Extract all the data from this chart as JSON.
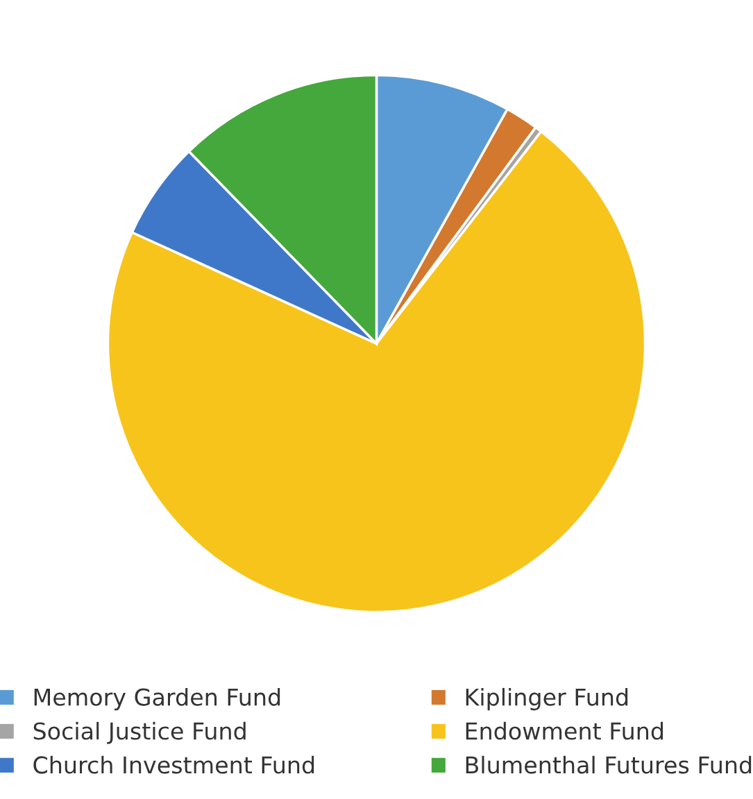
{
  "chart_data": {
    "type": "pie",
    "categories": [
      "Memory Garden Fund",
      "Kiplinger Fund",
      "Social Justice Fund",
      "Endowment Fund",
      "Church Investment Fund",
      "Blumenthal Futures Fund"
    ],
    "values": [
      8.1,
      2.0,
      0.4,
      71.3,
      5.9,
      12.3
    ],
    "colors": [
      "#5b9bd5",
      "#d2792f",
      "#a5a5a5",
      "#f7c41c",
      "#3f78c8",
      "#44a83c"
    ],
    "legend": "bottom"
  }
}
